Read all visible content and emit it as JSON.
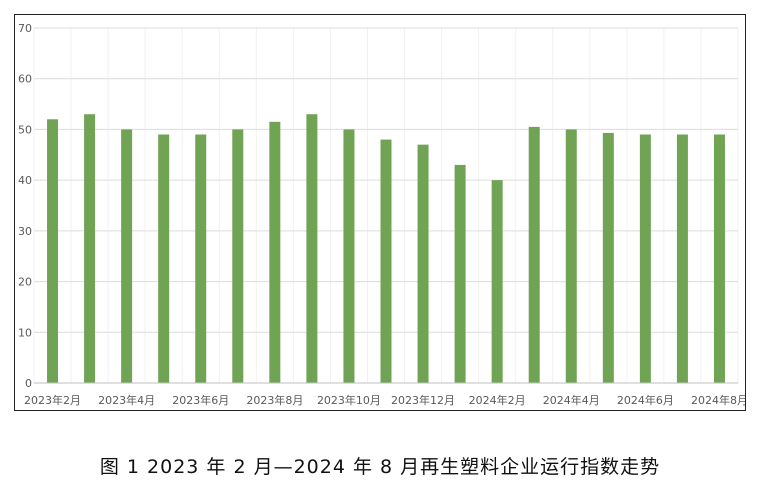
{
  "caption": "图 1  2023 年 2 月—2024 年 8 月再生塑料企业运行指数走势",
  "chart_data": {
    "type": "bar",
    "title": "",
    "xlabel": "",
    "ylabel": "",
    "ylim": [
      0,
      70
    ],
    "yticks": [
      0,
      10,
      20,
      30,
      40,
      50,
      60,
      70
    ],
    "grid": true,
    "bar_color": "#70a454",
    "categories": [
      "2023年2月",
      "2023年3月",
      "2023年4月",
      "2023年5月",
      "2023年6月",
      "2023年7月",
      "2023年8月",
      "2023年9月",
      "2023年10月",
      "2023年11月",
      "2023年12月",
      "2024年1月",
      "2024年2月",
      "2024年3月",
      "2024年4月",
      "2024年5月",
      "2024年6月",
      "2024年7月",
      "2024年8月"
    ],
    "x_tick_labels": [
      "2023年2月",
      "2023年4月",
      "2023年6月",
      "2023年8月",
      "2023年10月",
      "2023年12月",
      "2024年2月",
      "2024年4月",
      "2024年6月",
      "2024年8月"
    ],
    "values": [
      52,
      53,
      50,
      49,
      49,
      50,
      51.5,
      53,
      50,
      48,
      47,
      43,
      40,
      50.5,
      50,
      49.3,
      49,
      49,
      49
    ]
  }
}
